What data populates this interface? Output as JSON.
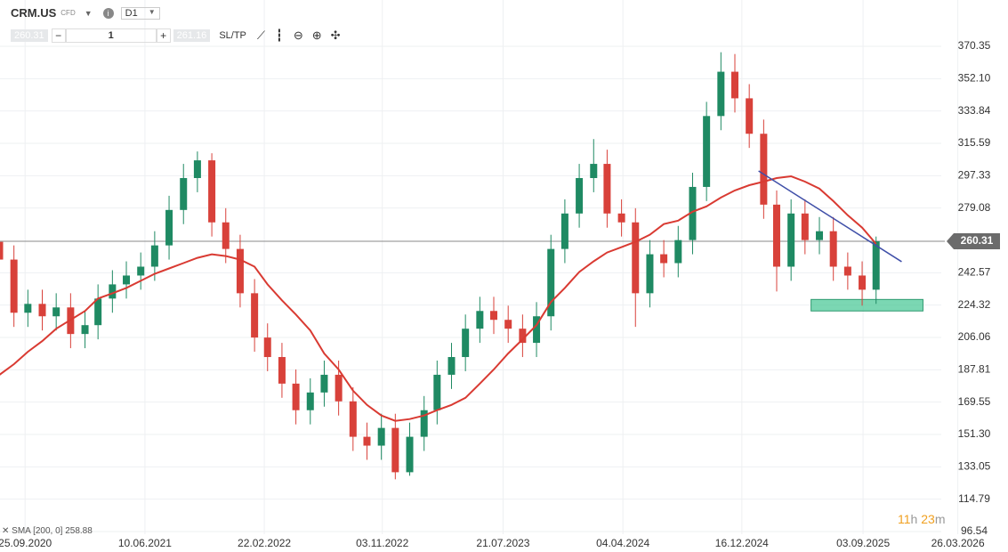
{
  "toolbar": {
    "symbol": "CRM.US",
    "instrument": "CFD",
    "timeframe": "D1",
    "bid": "260.31",
    "quantity": "1",
    "ask": "261.16",
    "sl_tp": "SL/TP"
  },
  "countdown": [
    "11",
    "h",
    "23",
    "m"
  ],
  "chart_data": {
    "type": "candlestick",
    "x": [
      "01.08.2020",
      "01.09.2020",
      "01.10.2020",
      "01.11.2020",
      "01.12.2020",
      "01.01.2021",
      "01.02.2021",
      "01.03.2021",
      "01.04.2021",
      "01.05.2021",
      "01.06.2021",
      "01.07.2021",
      "01.08.2021",
      "01.09.2021",
      "01.10.2021",
      "01.11.2021",
      "01.12.2021",
      "01.01.2022",
      "01.02.2022",
      "01.03.2022",
      "01.04.2022",
      "01.05.2022",
      "01.06.2022",
      "01.07.2022",
      "01.08.2022",
      "01.09.2022",
      "01.10.2022",
      "01.11.2022",
      "01.12.2022",
      "01.01.2023",
      "01.02.2023",
      "01.03.2023",
      "01.04.2023",
      "01.05.2023",
      "01.06.2023",
      "01.07.2023",
      "01.08.2023",
      "01.09.2023",
      "01.10.2023",
      "01.11.2023",
      "01.12.2023",
      "01.01.2024",
      "01.02.2024",
      "01.03.2024",
      "01.04.2024",
      "01.05.2024",
      "01.06.2024",
      "01.07.2024",
      "01.08.2024",
      "01.09.2024",
      "01.10.2024",
      "01.11.2024",
      "01.12.2024",
      "01.01.2025",
      "01.02.2025",
      "01.03.2025",
      "01.04.2025",
      "01.05.2025",
      "01.06.2025",
      "01.07.2025",
      "01.08.2025",
      "01.09.2025",
      "01.10.2025"
    ],
    "open": [
      260,
      250,
      220,
      225,
      218,
      223,
      208,
      213,
      228,
      236,
      241,
      246,
      258,
      278,
      296,
      306,
      271,
      256,
      231,
      206,
      195,
      180,
      165,
      175,
      185,
      170,
      150,
      145,
      155,
      130,
      150,
      165,
      185,
      195,
      211,
      221,
      216,
      211,
      203,
      218,
      256,
      276,
      296,
      304,
      276,
      271,
      231,
      253,
      248,
      261,
      291,
      331,
      356,
      341,
      321,
      281,
      246,
      276,
      261,
      266,
      246,
      241,
      233
    ],
    "high": [
      268,
      258,
      233,
      233,
      231,
      231,
      221,
      236,
      244,
      249,
      254,
      266,
      286,
      304,
      311,
      310,
      279,
      264,
      239,
      214,
      203,
      188,
      183,
      193,
      193,
      178,
      158,
      163,
      163,
      158,
      173,
      193,
      203,
      219,
      229,
      229,
      224,
      219,
      226,
      264,
      284,
      304,
      318,
      312,
      284,
      279,
      261,
      261,
      269,
      299,
      339,
      367,
      366,
      349,
      329,
      289,
      284,
      284,
      274,
      274,
      254,
      249,
      263
    ],
    "low": [
      242,
      212,
      212,
      210,
      210,
      200,
      200,
      205,
      220,
      228,
      233,
      238,
      250,
      270,
      288,
      263,
      248,
      223,
      198,
      187,
      172,
      157,
      157,
      167,
      162,
      142,
      137,
      137,
      126,
      128,
      142,
      157,
      177,
      187,
      203,
      208,
      203,
      195,
      195,
      210,
      248,
      268,
      288,
      268,
      263,
      212,
      223,
      240,
      240,
      253,
      283,
      323,
      333,
      313,
      273,
      232,
      238,
      253,
      253,
      238,
      233,
      224,
      225
    ],
    "close": [
      250,
      220,
      225,
      218,
      223,
      208,
      213,
      228,
      236,
      241,
      246,
      258,
      278,
      296,
      306,
      271,
      256,
      231,
      206,
      195,
      180,
      165,
      175,
      185,
      170,
      150,
      145,
      155,
      130,
      150,
      165,
      185,
      195,
      211,
      221,
      216,
      211,
      203,
      218,
      256,
      276,
      296,
      304,
      276,
      271,
      231,
      253,
      248,
      261,
      291,
      331,
      356,
      341,
      321,
      281,
      246,
      276,
      261,
      266,
      246,
      241,
      233,
      260.31
    ],
    "up_color": "#1f8a63",
    "down_color": "#d8413a",
    "sma": {
      "name": "SMA [200, 0]",
      "color": "#d93a32",
      "values": [
        185,
        191,
        198,
        204,
        211,
        216,
        221,
        228,
        231,
        234,
        238,
        242,
        245,
        248,
        251,
        253,
        252,
        250,
        246,
        236,
        227,
        219,
        210,
        197,
        188,
        176,
        168,
        162,
        159,
        160,
        162,
        165,
        168,
        172,
        180,
        188,
        197,
        205,
        213,
        226,
        234,
        243,
        249,
        254,
        257,
        260,
        264,
        270,
        272,
        277,
        280,
        285,
        289,
        292,
        294,
        296,
        297,
        294,
        290,
        283,
        275,
        268,
        258.88
      ]
    },
    "price_line": {
      "value": 260.31,
      "color": "#8a8a8a"
    },
    "trendline": {
      "x": [
        "21.01.2025",
        "25.11.2025"
      ],
      "values": [
        300.0,
        248.8
      ],
      "color": "#3f4fa8"
    },
    "support_zone": {
      "x": [
        "14.05.2025",
        "10.01.2026"
      ],
      "values": [
        221,
        227.5
      ],
      "color": "#4fc99a"
    },
    "xlim": [
      "02.08.2020",
      "12.07.2026"
    ],
    "xticks": [
      "25.09.2020",
      "10.06.2021",
      "22.02.2022",
      "03.11.2022",
      "21.07.2023",
      "04.04.2024",
      "16.12.2024",
      "03.09.2025",
      "26.03.2026"
    ],
    "ylim": [
      95.03,
      396.48
    ],
    "yticks": [
      370.35,
      {
        "value": 352.1,
        "label": "352.10"
      },
      333.84,
      315.59,
      297.33,
      279.08,
      242.57,
      224.32,
      206.06,
      187.81,
      169.55,
      {
        "value": 151.3,
        "label": "151.30"
      },
      133.05,
      114.79,
      96.54
    ],
    "grid": true
  }
}
